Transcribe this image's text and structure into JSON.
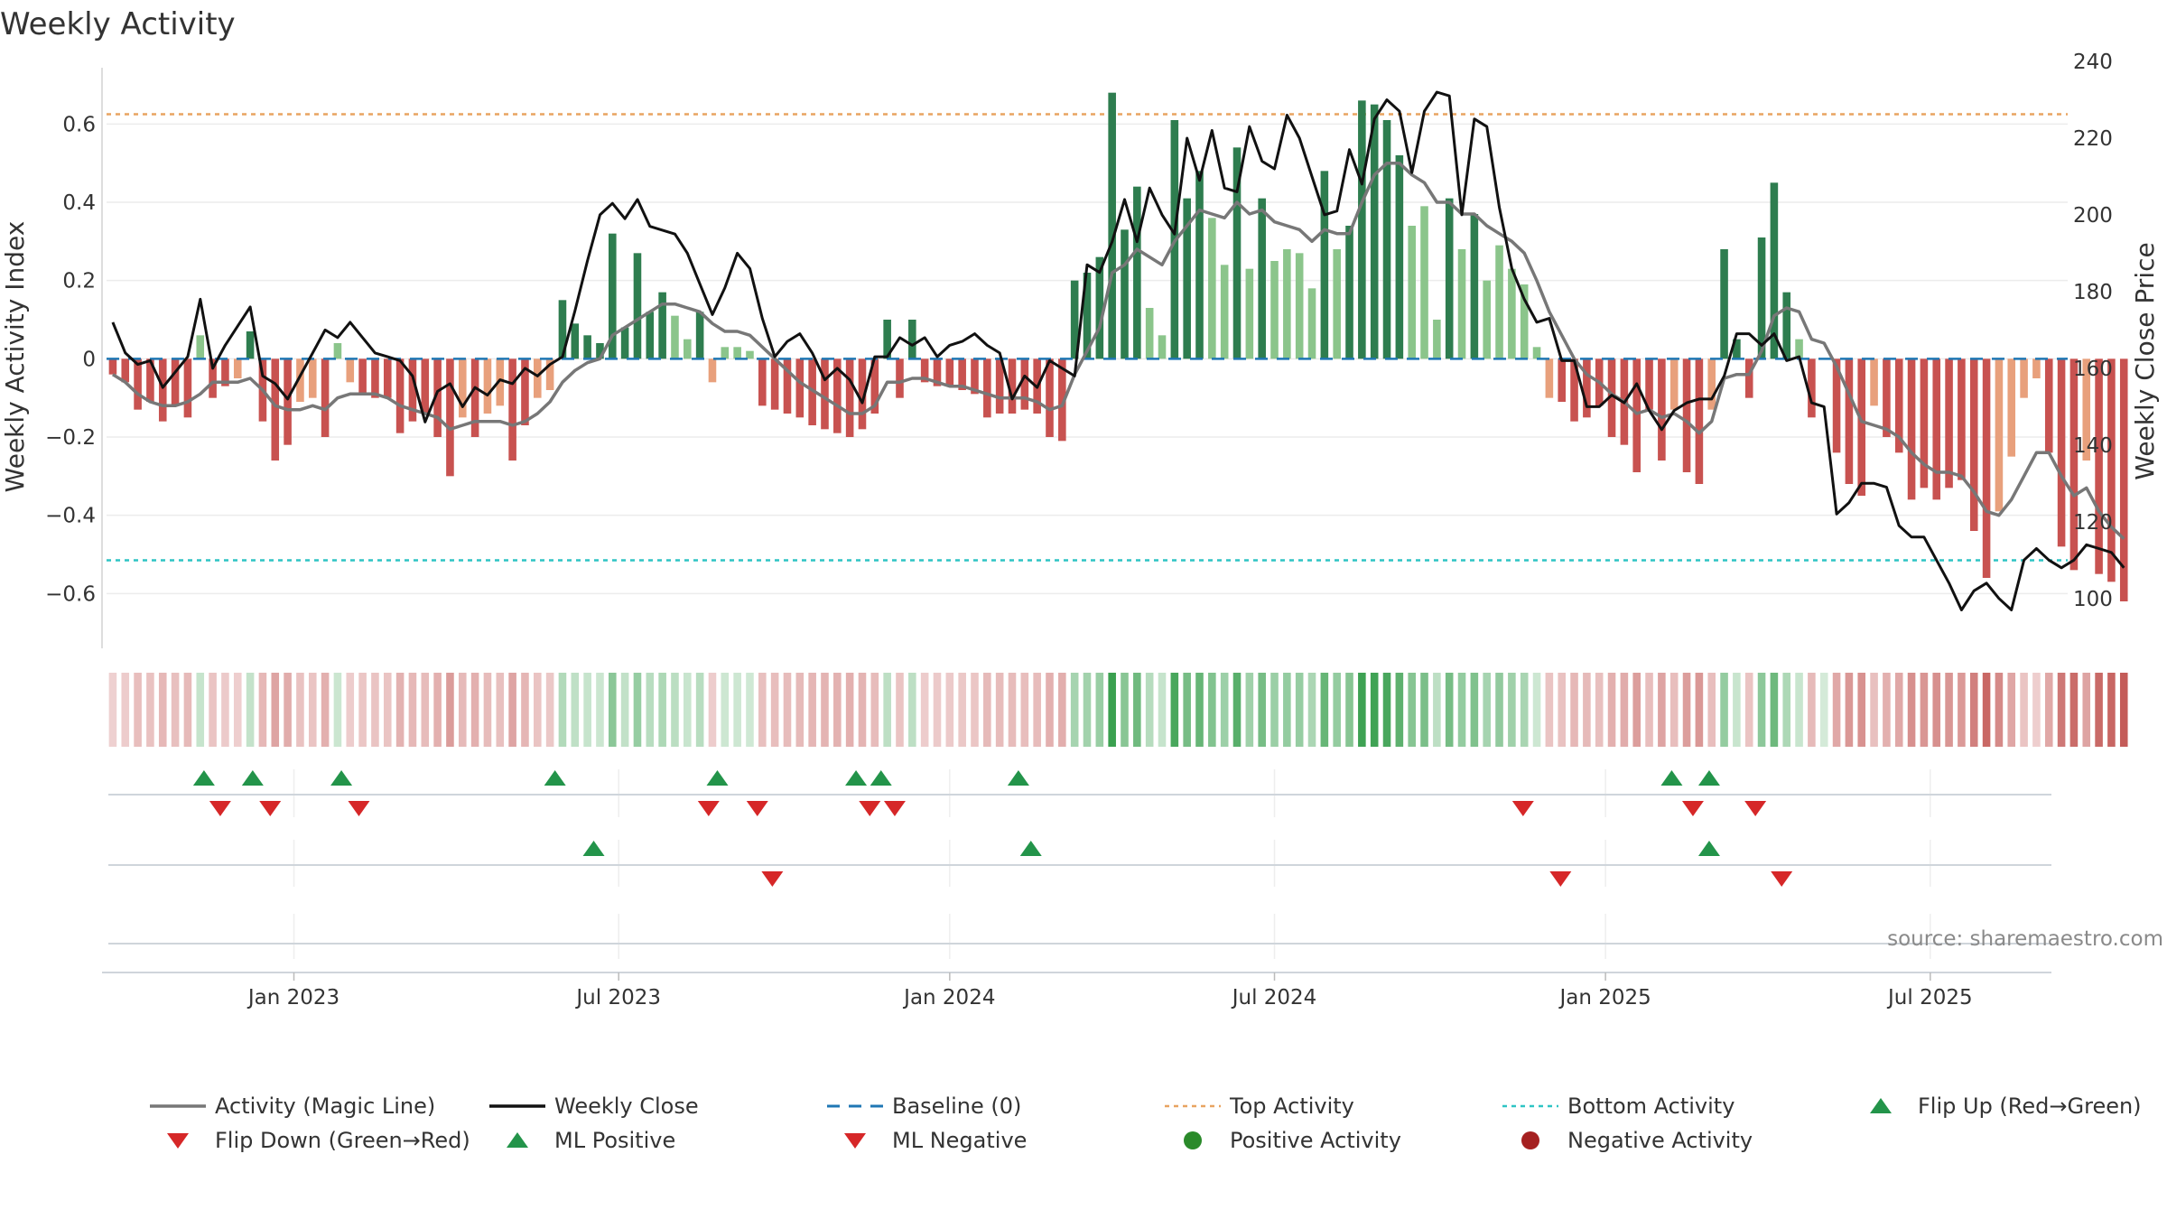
{
  "chart_data": {
    "type": "bar",
    "title": "Weekly Activity",
    "ylabel": "Weekly Activity Index",
    "y2label": "Weekly Close Price",
    "ylim": [
      -0.74,
      0.76
    ],
    "y2lim": [
      87,
      240
    ],
    "yticks": [
      -0.6,
      -0.4,
      -0.2,
      0,
      0.2,
      0.4,
      0.6
    ],
    "ytick_labels": [
      "−0.6",
      "−0.4",
      "−0.2",
      "0",
      "0.2",
      "0.4",
      "0.6"
    ],
    "y2ticks": [
      100,
      120,
      140,
      160,
      180,
      200,
      220,
      240
    ],
    "y2tick_labels": [
      "100",
      "120",
      "140",
      "160",
      "180",
      "200",
      "220",
      "240"
    ],
    "x_range_weeks": [
      0,
      157
    ],
    "xticks": [
      {
        "week": 15,
        "label": "Jan 2023"
      },
      {
        "week": 41,
        "label": "Jul 2023"
      },
      {
        "week": 67.5,
        "label": "Jan 2024"
      },
      {
        "week": 93.5,
        "label": "Jul 2024"
      },
      {
        "week": 120,
        "label": "Jan 2025"
      },
      {
        "week": 146,
        "label": "Jul 2025"
      }
    ],
    "top_activity": 0.625,
    "bottom_activity": -0.515,
    "baseline": 0,
    "activity_weekly": [
      -0.04,
      -0.06,
      -0.13,
      -0.11,
      -0.16,
      -0.12,
      -0.15,
      0.06,
      -0.1,
      -0.07,
      -0.05,
      0.07,
      -0.16,
      -0.26,
      -0.22,
      -0.11,
      -0.1,
      -0.2,
      0.04,
      -0.06,
      -0.09,
      -0.1,
      -0.1,
      -0.19,
      -0.16,
      -0.14,
      -0.2,
      -0.3,
      -0.15,
      -0.2,
      -0.14,
      -0.12,
      -0.26,
      -0.17,
      -0.1,
      -0.08,
      0.15,
      0.09,
      0.06,
      0.04,
      0.32,
      0.08,
      0.27,
      0.12,
      0.17,
      0.11,
      0.05,
      0.12,
      -0.06,
      0.03,
      0.03,
      0.02,
      -0.12,
      -0.13,
      -0.14,
      -0.15,
      -0.17,
      -0.18,
      -0.19,
      -0.2,
      -0.18,
      -0.14,
      0.1,
      -0.1,
      0.1,
      -0.06,
      -0.07,
      -0.07,
      -0.08,
      -0.09,
      -0.15,
      -0.14,
      -0.14,
      -0.13,
      -0.14,
      -0.2,
      -0.21,
      0.2,
      0.22,
      0.26,
      0.68,
      0.33,
      0.44,
      0.13,
      0.06,
      0.61,
      0.41,
      0.48,
      0.36,
      0.24,
      0.54,
      0.23,
      0.41,
      0.25,
      0.28,
      0.27,
      0.18,
      0.48,
      0.28,
      0.34,
      0.66,
      0.65,
      0.61,
      0.52,
      0.34,
      0.39,
      0.1,
      0.41,
      0.28,
      0.37,
      0.2,
      0.29,
      0.23,
      0.19,
      0.03,
      -0.1,
      -0.11,
      -0.16,
      -0.15,
      -0.12,
      -0.2,
      -0.22,
      -0.29,
      -0.13,
      -0.26,
      -0.13,
      -0.29,
      -0.32,
      -0.13,
      0.28,
      0.05,
      -0.1,
      0.31,
      0.45,
      0.17,
      0.05,
      -0.15,
      0.0,
      -0.24,
      -0.32,
      -0.35,
      -0.12,
      -0.2,
      -0.24,
      -0.36,
      -0.33,
      -0.36,
      -0.33,
      -0.31,
      -0.44,
      -0.56,
      -0.39,
      -0.25,
      -0.1,
      -0.05,
      -0.24,
      -0.48,
      -0.54,
      -0.26,
      -0.55,
      -0.57,
      -0.62
    ],
    "magic_line": [
      -0.04,
      -0.06,
      -0.09,
      -0.11,
      -0.12,
      -0.12,
      -0.11,
      -0.09,
      -0.06,
      -0.06,
      -0.06,
      -0.05,
      -0.08,
      -0.12,
      -0.13,
      -0.13,
      -0.12,
      -0.13,
      -0.1,
      -0.09,
      -0.09,
      -0.09,
      -0.1,
      -0.12,
      -0.13,
      -0.14,
      -0.15,
      -0.18,
      -0.17,
      -0.16,
      -0.16,
      -0.16,
      -0.17,
      -0.16,
      -0.14,
      -0.11,
      -0.06,
      -0.03,
      -0.01,
      0.0,
      0.06,
      0.08,
      0.1,
      0.12,
      0.14,
      0.14,
      0.13,
      0.12,
      0.09,
      0.07,
      0.07,
      0.06,
      0.03,
      0.0,
      -0.03,
      -0.06,
      -0.08,
      -0.1,
      -0.12,
      -0.14,
      -0.14,
      -0.12,
      -0.06,
      -0.06,
      -0.05,
      -0.05,
      -0.06,
      -0.07,
      -0.07,
      -0.08,
      -0.09,
      -0.1,
      -0.1,
      -0.1,
      -0.11,
      -0.13,
      -0.12,
      -0.04,
      0.02,
      0.08,
      0.22,
      0.24,
      0.28,
      0.26,
      0.24,
      0.3,
      0.34,
      0.38,
      0.37,
      0.36,
      0.4,
      0.37,
      0.38,
      0.35,
      0.34,
      0.33,
      0.3,
      0.33,
      0.32,
      0.32,
      0.4,
      0.47,
      0.5,
      0.5,
      0.47,
      0.45,
      0.4,
      0.4,
      0.37,
      0.37,
      0.34,
      0.32,
      0.3,
      0.27,
      0.2,
      0.12,
      0.06,
      0.0,
      -0.04,
      -0.06,
      -0.09,
      -0.11,
      -0.14,
      -0.13,
      -0.15,
      -0.14,
      -0.16,
      -0.19,
      -0.16,
      -0.05,
      -0.04,
      -0.04,
      0.02,
      0.11,
      0.13,
      0.12,
      0.05,
      0.04,
      -0.02,
      -0.09,
      -0.16,
      -0.17,
      -0.18,
      -0.2,
      -0.24,
      -0.27,
      -0.29,
      -0.29,
      -0.3,
      -0.34,
      -0.39,
      -0.4,
      -0.36,
      -0.3,
      -0.24,
      -0.24,
      -0.3,
      -0.35,
      -0.33,
      -0.39,
      -0.43,
      -0.46
    ],
    "weekly_close": [
      172,
      164,
      161,
      162,
      155,
      159,
      163,
      178,
      160,
      166,
      171,
      176,
      158,
      156,
      152,
      158,
      164,
      170,
      168,
      172,
      168,
      164,
      163,
      162,
      158,
      146,
      154,
      156,
      150,
      155,
      153,
      157,
      156,
      160,
      158,
      161,
      163,
      175,
      188,
      200,
      203,
      199,
      204,
      197,
      196,
      195,
      190,
      182,
      174,
      181,
      190,
      186,
      173,
      163,
      167,
      169,
      164,
      157,
      160,
      157,
      151,
      163,
      163,
      168,
      166,
      168,
      163,
      166,
      167,
      169,
      166,
      164,
      152,
      158,
      155,
      162,
      160,
      158,
      187,
      185,
      193,
      204,
      193,
      207,
      200,
      195,
      220,
      209,
      222,
      207,
      206,
      223,
      214,
      212,
      226,
      220,
      210,
      200,
      201,
      217,
      208,
      225,
      230,
      227,
      211,
      227,
      232,
      231,
      200,
      225,
      223,
      202,
      186,
      178,
      172,
      173,
      162,
      162,
      150,
      150,
      153,
      151,
      156,
      149,
      144,
      149,
      151,
      152,
      152,
      158,
      169,
      169,
      166,
      169,
      162,
      163,
      151,
      150,
      122,
      125,
      130,
      130,
      129,
      119,
      116,
      116,
      110,
      104,
      97,
      102,
      104,
      100,
      97,
      110,
      113,
      110,
      108,
      110,
      114,
      113,
      112,
      108
    ],
    "flip_up_weeks": [
      7.8,
      11.7,
      18.8,
      35.9,
      48.9,
      60.0,
      62.0,
      73.0,
      125.3,
      128.3
    ],
    "flip_down_weeks": [
      9.1,
      13.1,
      20.2,
      48.2,
      52.1,
      61.1,
      63.1,
      113.4,
      127.0,
      132.0
    ],
    "ml_positive_weeks": [
      39.0,
      74.0,
      128.3
    ],
    "ml_negative_weeks": [
      53.3,
      116.4,
      134.1
    ],
    "colors": {
      "strong_green": "#2e7d4f",
      "light_green": "#8bc58b",
      "strong_red": "#c85250",
      "light_red": "#e8a07c",
      "magic_line": "#777777",
      "close": "#111111",
      "baseline": "#1f77b4",
      "top": "#e8a461",
      "bottom": "#2ec4c4",
      "marker_green": "#23944a",
      "marker_red": "#d62728",
      "pos_dot": "#2a8a2a",
      "neg_dot": "#a52020"
    },
    "legend": [
      {
        "label": "Activity (Magic Line)",
        "kind": "line",
        "color": "#777777"
      },
      {
        "label": "Weekly Close",
        "kind": "line",
        "color": "#111111"
      },
      {
        "label": "Baseline (0)",
        "kind": "dash",
        "color": "#1f77b4"
      },
      {
        "label": "Top Activity",
        "kind": "dot",
        "color": "#e8a461"
      },
      {
        "label": "Bottom Activity",
        "kind": "dot",
        "color": "#2ec4c4"
      },
      {
        "label": "Flip Up (Red→Green)",
        "kind": "up",
        "color": "#23944a"
      },
      {
        "label": "Flip Down (Green→Red)",
        "kind": "down",
        "color": "#d62728"
      },
      {
        "label": "ML Positive",
        "kind": "up",
        "color": "#23944a"
      },
      {
        "label": "ML Negative",
        "kind": "down",
        "color": "#d62728"
      },
      {
        "label": "Positive Activity",
        "kind": "circle",
        "color": "#2a8a2a"
      },
      {
        "label": "Negative Activity",
        "kind": "circle",
        "color": "#a52020"
      }
    ],
    "source": "source: sharemaestro.com"
  }
}
